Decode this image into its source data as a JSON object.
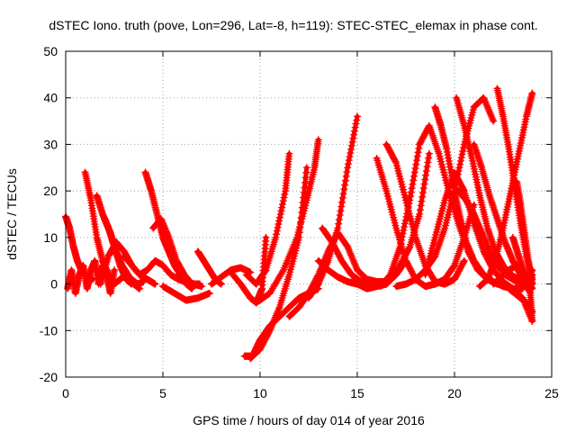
{
  "chart_data": {
    "type": "scatter",
    "title": "dSTEC Iono. truth (pove, Lon=296, Lat=-8, h=119): STEC-STEC_elemax in phase cont.",
    "xlabel": "GPS time / hours of day 014 of year 2016",
    "ylabel": "dSTEC  / TECUs",
    "xlim": [
      0,
      25
    ],
    "ylim": [
      -20,
      50
    ],
    "xticks": [
      0,
      5,
      10,
      15,
      20,
      25
    ],
    "yticks": [
      -20,
      -10,
      0,
      10,
      20,
      30,
      40,
      50
    ],
    "grid": true,
    "marker": "+",
    "color": "#ff0000",
    "series": [
      {
        "x": [
          0.0,
          0.2,
          0.4,
          0.6,
          0.8,
          1.0,
          1.2,
          1.4
        ],
        "y": [
          14.5,
          12,
          8,
          5,
          3,
          2,
          1.5,
          1
        ]
      },
      {
        "x": [
          0.1,
          0.3,
          0.5,
          0.7,
          0.9,
          1.1,
          1.3,
          1.5,
          1.7,
          1.9,
          2.1,
          2.3,
          2.5
        ],
        "y": [
          -1,
          3,
          -2,
          2,
          4,
          -1,
          3,
          5,
          0,
          4,
          2,
          -2,
          3
        ]
      },
      {
        "x": [
          1.0,
          1.3,
          1.6,
          1.9,
          2.2,
          2.5,
          2.8,
          3.1,
          3.4,
          3.7,
          4.0
        ],
        "y": [
          24,
          18,
          10,
          5,
          2,
          0,
          1,
          2,
          1,
          0,
          0.5
        ]
      },
      {
        "x": [
          1.6,
          1.9,
          2.2,
          2.5,
          2.8,
          3.1,
          3.4
        ],
        "y": [
          19,
          15,
          12,
          8,
          4,
          1,
          0
        ]
      },
      {
        "x": [
          2.0,
          2.3,
          2.6,
          2.9,
          3.2,
          3.5,
          3.8
        ],
        "y": [
          14,
          11,
          7,
          4,
          2,
          0,
          -1
        ]
      },
      {
        "x": [
          1.8,
          2.2,
          2.6,
          3.0,
          3.4,
          3.8,
          4.2,
          4.6
        ],
        "y": [
          0,
          6,
          9,
          7,
          4,
          2,
          1,
          0
        ]
      },
      {
        "x": [
          3.0,
          3.4,
          3.8,
          4.2,
          4.6,
          5.0,
          5.4,
          5.8,
          6.2,
          6.6,
          7.0
        ],
        "y": [
          6,
          4,
          2,
          3,
          5,
          4,
          2,
          1,
          0.5,
          0,
          -0.5
        ]
      },
      {
        "x": [
          4.1,
          4.4,
          4.7,
          5.0,
          5.3,
          5.6,
          5.9,
          6.2,
          6.5
        ],
        "y": [
          24,
          20,
          15,
          10,
          7,
          4,
          2,
          0,
          -1
        ]
      },
      {
        "x": [
          4.5,
          4.9,
          5.3,
          5.7,
          6.1,
          6.5,
          6.9
        ],
        "y": [
          12,
          14,
          10,
          5,
          2,
          0,
          0
        ]
      },
      {
        "x": [
          5.0,
          5.6,
          6.2,
          6.8,
          7.4
        ],
        "y": [
          -0.5,
          -2,
          -3.5,
          -3,
          -2
        ]
      },
      {
        "x": [
          6.8,
          7.1,
          7.4,
          7.7,
          8.0
        ],
        "y": [
          7,
          5,
          3,
          1,
          0
        ]
      },
      {
        "x": [
          7.5,
          8.0,
          8.5,
          9.0,
          9.5
        ],
        "y": [
          0,
          1.5,
          3,
          3.5,
          2.5
        ]
      },
      {
        "x": [
          8.5,
          9.0,
          9.5,
          9.8,
          10.1,
          10.3
        ],
        "y": [
          2.5,
          0,
          -3,
          -4,
          -1,
          10
        ]
      },
      {
        "x": [
          9.2,
          9.6,
          10.0,
          10.5,
          11.0,
          11.5,
          12.0,
          12.5,
          13.0
        ],
        "y": [
          -15.5,
          -15.5,
          -12,
          -9,
          -7,
          -5,
          -3,
          -2,
          -1
        ]
      },
      {
        "x": [
          9.3,
          9.8,
          10.3,
          10.8,
          11.3,
          11.5
        ],
        "y": [
          2,
          0,
          3,
          10,
          20,
          28
        ]
      },
      {
        "x": [
          9.8,
          10.5,
          11.2,
          11.9,
          12.4,
          12.8,
          13.0
        ],
        "y": [
          -4,
          -2,
          3,
          10,
          18,
          25,
          31
        ]
      },
      {
        "x": [
          9.5,
          10.0,
          10.5,
          11.0,
          11.5,
          12.0,
          12.4
        ],
        "y": [
          -16,
          -14,
          -10,
          -5,
          2,
          10,
          25
        ]
      },
      {
        "x": [
          12.5,
          13.0,
          13.5,
          14.0,
          14.5,
          15.0
        ],
        "y": [
          -3,
          0,
          5,
          12,
          25,
          36
        ]
      },
      {
        "x": [
          11.5,
          12.0,
          12.5,
          13.0,
          13.5,
          14.0,
          14.5,
          15.0,
          15.5,
          16.0,
          16.5
        ],
        "y": [
          -7,
          -5,
          -2,
          2,
          7,
          11,
          8,
          3,
          1,
          0.5,
          0.5
        ]
      },
      {
        "x": [
          13.2,
          13.7,
          14.2,
          14.7,
          15.2,
          15.7,
          16.2,
          16.7,
          17.2,
          17.7,
          18.2,
          18.7
        ],
        "y": [
          12,
          9,
          5,
          2,
          0.5,
          0,
          0,
          1,
          4,
          8,
          15,
          28
        ]
      },
      {
        "x": [
          13.0,
          13.5,
          14.0,
          14.5,
          15.0,
          15.5,
          16.0,
          16.5,
          17.0,
          17.5
        ],
        "y": [
          5,
          3,
          1.5,
          0.5,
          0,
          -1,
          -0.5,
          0,
          2,
          5
        ]
      },
      {
        "x": [
          16.0,
          16.5,
          17.0,
          17.5,
          18.0,
          18.5,
          19.0,
          19.5,
          20.0,
          20.5,
          21.0
        ],
        "y": [
          27,
          20,
          12,
          5,
          1,
          -0.5,
          0,
          1,
          4,
          10,
          17
        ]
      },
      {
        "x": [
          16.2,
          16.7,
          17.2,
          17.7,
          18.2,
          18.7,
          19.2,
          19.7,
          20.2,
          20.7,
          21.2,
          21.7,
          22.2
        ],
        "y": [
          -0.5,
          2,
          8,
          18,
          30,
          34,
          28,
          20,
          13,
          7,
          3,
          1,
          0
        ]
      },
      {
        "x": [
          16.5,
          17.0,
          17.5,
          18.0,
          18.5,
          19.0,
          19.5,
          20.0,
          20.5
        ],
        "y": [
          30,
          26,
          18,
          10,
          4,
          0.5,
          0,
          1,
          5
        ]
      },
      {
        "x": [
          17.0,
          17.5,
          18.0,
          18.5,
          19.0,
          19.5,
          20.0,
          20.5,
          21.0,
          21.5,
          22.0
        ],
        "y": [
          -0.5,
          0,
          1,
          3,
          6,
          12,
          20,
          30,
          38,
          40,
          35
        ]
      },
      {
        "x": [
          18.5,
          19.0,
          19.5,
          20.0,
          20.5,
          21.0,
          21.5,
          22.0,
          22.5,
          23.0,
          23.5,
          24.0
        ],
        "y": [
          2,
          10,
          18,
          24,
          20,
          13,
          7,
          3,
          0.5,
          -1,
          -1,
          3
        ]
      },
      {
        "x": [
          19.0,
          19.3,
          19.6,
          20.0,
          20.3,
          20.6,
          21.0,
          21.5,
          22.0,
          22.5,
          23.0,
          23.5,
          24.0
        ],
        "y": [
          38,
          34,
          29,
          20,
          14,
          9,
          5,
          2,
          0.5,
          -0.5,
          -1,
          -3,
          -8
        ]
      },
      {
        "x": [
          19.8,
          20.2,
          20.6,
          21.0,
          21.4,
          21.8,
          22.2,
          22.6,
          23.0,
          23.4,
          23.8
        ],
        "y": [
          19,
          20,
          18,
          15,
          11,
          7,
          4,
          2,
          1,
          0,
          -1
        ]
      },
      {
        "x": [
          20.1,
          20.5,
          20.9,
          21.3,
          21.7,
          22.1,
          22.5,
          22.9,
          23.3,
          23.7,
          24.0
        ],
        "y": [
          40,
          34,
          27,
          19,
          12,
          7,
          4,
          2,
          1,
          0,
          2
        ]
      },
      {
        "x": [
          21.0,
          21.4,
          21.8,
          22.2,
          22.6,
          23.0,
          23.4,
          23.8,
          24.0
        ],
        "y": [
          30,
          25,
          19,
          14,
          9,
          5,
          2,
          1,
          0
        ]
      },
      {
        "x": [
          21.3,
          21.7,
          22.1,
          22.5,
          22.9,
          23.3,
          23.7,
          24.0
        ],
        "y": [
          -0.5,
          1,
          5,
          12,
          20,
          28,
          36,
          41
        ]
      },
      {
        "x": [
          22.2,
          22.5,
          22.8,
          23.1,
          23.4,
          23.7,
          24.0
        ],
        "y": [
          42,
          36,
          29,
          21,
          13,
          6,
          1
        ]
      },
      {
        "x": [
          22.0,
          22.4,
          22.8,
          23.2,
          23.6,
          24.0
        ],
        "y": [
          0,
          1.5,
          3,
          4,
          2,
          -1
        ]
      },
      {
        "x": [
          23.2,
          23.4,
          23.6,
          23.8,
          24.0
        ],
        "y": [
          22,
          17,
          11,
          5,
          0
        ]
      },
      {
        "x": [
          23.0,
          23.3,
          23.6,
          23.9,
          24.0
        ],
        "y": [
          10,
          6,
          2,
          -2,
          -8
        ]
      },
      {
        "x": [
          22.8,
          23.1,
          23.4,
          23.7,
          24.0
        ],
        "y": [
          -1,
          -2,
          -3,
          -4,
          -6
        ]
      }
    ]
  }
}
